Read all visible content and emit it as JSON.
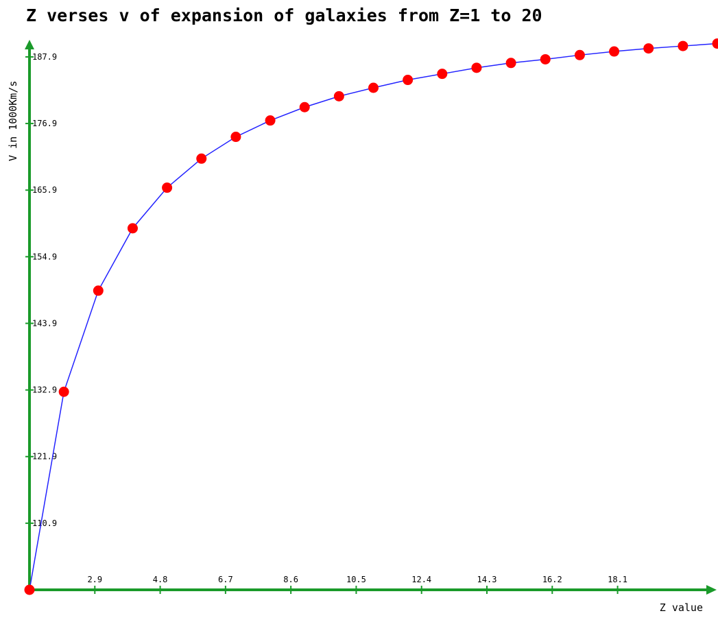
{
  "colors": {
    "axis": "#1a9a2a",
    "line": "#2222ff",
    "marker": "#ff0000",
    "text": "#000000"
  },
  "chart_data": {
    "type": "line",
    "title": "Z verses v of expansion of galaxies from Z=1 to 20",
    "xlabel": "Z value",
    "ylabel": "V in 1000Km/s",
    "xlim": [
      1,
      20.9
    ],
    "ylim": [
      99.9,
      190.5
    ],
    "x_ticks": [
      "2.9",
      "4.8",
      "6.7",
      "8.6",
      "10.5",
      "12.4",
      "14.3",
      "16.2",
      "18.1"
    ],
    "y_ticks": [
      "110.9",
      "121.9",
      "132.9",
      "143.9",
      "154.9",
      "165.9",
      "176.9",
      "187.9"
    ],
    "grid": false,
    "legend": "none",
    "series": [
      {
        "x": [
          1,
          2,
          3,
          4,
          5,
          6,
          7,
          8,
          9,
          10,
          11,
          12,
          13,
          14,
          15,
          16,
          17,
          18,
          19,
          20,
          21
        ],
        "values": [
          99.9,
          132.6,
          149.3,
          159.6,
          166.3,
          171.1,
          174.7,
          177.4,
          179.6,
          181.4,
          182.8,
          184.1,
          185.1,
          186.1,
          186.9,
          187.5,
          188.2,
          188.8,
          189.3,
          189.7,
          190.1
        ]
      }
    ]
  }
}
